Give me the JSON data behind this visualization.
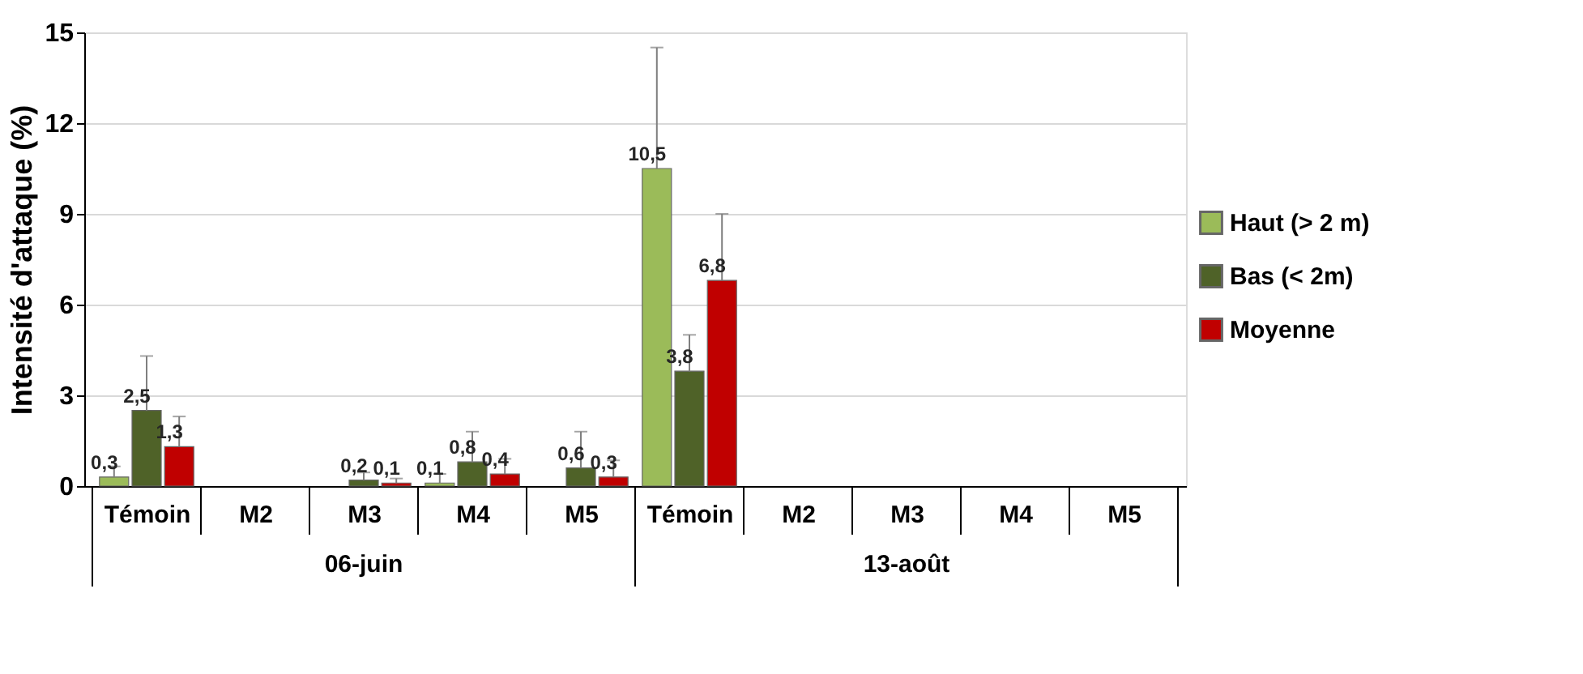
{
  "chart_data": {
    "type": "bar",
    "ylabel": "Intensité d'attaque (%)",
    "categories": [
      "Témoin",
      "M2",
      "M3",
      "M4",
      "M5",
      "Témoin",
      "M2",
      "M3",
      "M4",
      "M5"
    ],
    "annotations": [
      "06-juin",
      "13-août"
    ],
    "ylim": [
      0,
      15
    ],
    "yticks": [
      0,
      3,
      6,
      9,
      12,
      15
    ],
    "grid": "y",
    "legend": "right",
    "series": [
      {
        "name": "Haut (> 2 m)",
        "color": "#9bbb59",
        "values": [
          0.3,
          null,
          null,
          0.1,
          null,
          10.5,
          null,
          null,
          null,
          null
        ],
        "value_labels": [
          "0,3",
          null,
          null,
          "0,1",
          null,
          "10,5",
          null,
          null,
          null,
          null
        ],
        "errors": [
          [
            0.3,
            0.65
          ],
          null,
          null,
          [
            0.1,
            0.4
          ],
          null,
          [
            10.5,
            14.5
          ],
          null,
          null,
          null,
          null
        ]
      },
      {
        "name": "Bas (< 2m)",
        "color": "#4f6228",
        "values": [
          2.5,
          null,
          0.2,
          0.8,
          0.6,
          3.8,
          null,
          null,
          null,
          null
        ],
        "value_labels": [
          "2,5",
          null,
          "0,2",
          "0,8",
          "0,6",
          "3,8",
          null,
          null,
          null,
          null
        ],
        "errors": [
          [
            2.5,
            4.3
          ],
          null,
          [
            0.2,
            0.45
          ],
          [
            0.8,
            1.8
          ],
          [
            0.6,
            1.8
          ],
          [
            3.8,
            5.0
          ],
          null,
          null,
          null,
          null
        ]
      },
      {
        "name": "Moyenne",
        "color": "#c00000",
        "values": [
          1.3,
          null,
          0.1,
          0.4,
          0.3,
          6.8,
          null,
          null,
          null,
          null
        ],
        "value_labels": [
          "1,3",
          null,
          "0,1",
          "0,4",
          "0,3",
          "6,8",
          null,
          null,
          null,
          null
        ],
        "errors": [
          [
            1.3,
            2.3
          ],
          null,
          [
            0.1,
            0.25
          ],
          [
            0.4,
            0.9
          ],
          [
            0.3,
            0.85
          ],
          [
            6.8,
            9.0
          ],
          null,
          null,
          null,
          null
        ]
      }
    ]
  }
}
